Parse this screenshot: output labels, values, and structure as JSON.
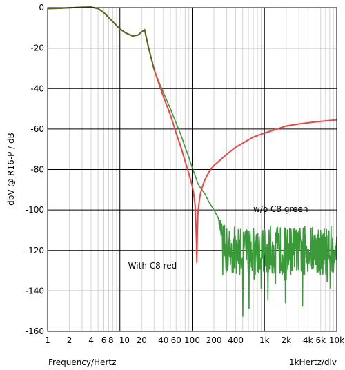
{
  "chart_data": {
    "type": "line",
    "xscale": "log",
    "xlim": [
      1,
      10000
    ],
    "ylim": [
      -160,
      0
    ],
    "xlabel": "Frequency/Hertz",
    "xlabel_right": "1kHertz/div",
    "ylabel": "dbV @ R16-P / dB",
    "grid": true,
    "y_ticks": [
      0,
      -20,
      -40,
      -60,
      -80,
      -100,
      -120,
      -140,
      -160
    ],
    "x_ticks": [
      {
        "value": 1,
        "label": "1"
      },
      {
        "value": 2,
        "label": "2"
      },
      {
        "value": 4,
        "label": "4"
      },
      {
        "value": 6,
        "label": "6"
      },
      {
        "value": 8,
        "label": "8"
      },
      {
        "value": 10,
        "label": "10"
      },
      {
        "value": 20,
        "label": "20"
      },
      {
        "value": 40,
        "label": "40"
      },
      {
        "value": 60,
        "label": "60"
      },
      {
        "value": 100,
        "label": "100"
      },
      {
        "value": 200,
        "label": "200"
      },
      {
        "value": 400,
        "label": "400"
      },
      {
        "value": 1000,
        "label": "1k"
      },
      {
        "value": 2000,
        "label": "2k"
      },
      {
        "value": 4000,
        "label": "4k"
      },
      {
        "value": 6000,
        "label": "6k"
      },
      {
        "value": 10000,
        "label": "10k"
      }
    ],
    "annotations": [
      {
        "text": "w/o C8 green",
        "x": 700,
        "y": -101
      },
      {
        "text": "With C8 red",
        "x": 13,
        "y": -129
      }
    ],
    "series": [
      {
        "color": "#ee4444",
        "x": [
          1,
          1.5,
          2,
          3,
          4,
          5,
          6,
          8,
          10,
          12,
          15,
          18,
          20,
          22,
          25,
          30,
          35,
          40,
          50,
          60,
          70,
          80,
          90,
          100,
          105,
          110,
          113,
          115,
          116,
          118,
          120,
          125,
          130,
          140,
          150,
          175,
          200,
          250,
          300,
          400,
          500,
          700,
          1000,
          1500,
          2000,
          3000,
          5000,
          7000,
          10000
        ],
        "y": [
          -0.5,
          -0.3,
          -0.1,
          0.2,
          0.3,
          -0.5,
          -2.5,
          -7,
          -10.5,
          -12.5,
          -14,
          -13.5,
          -12,
          -11,
          -20,
          -31,
          -38,
          -44,
          -53,
          -62,
          -69,
          -76,
          -82,
          -88,
          -92,
          -98,
          -108,
          -118,
          -126,
          -110,
          -102,
          -96,
          -92,
          -88,
          -85,
          -80.5,
          -78,
          -75,
          -72.5,
          -69,
          -67,
          -64,
          -62,
          -60,
          -58.5,
          -57.5,
          -56.5,
          -56,
          -55.5
        ]
      },
      {
        "color": "#3a9a3a",
        "x": [
          1,
          1.5,
          2,
          3,
          4,
          5,
          6,
          8,
          10,
          12,
          15,
          18,
          20,
          22,
          25,
          30,
          35,
          40,
          50,
          60,
          70,
          80,
          90,
          100,
          110,
          120,
          130,
          150,
          170,
          200,
          230
        ],
        "y": [
          -0.5,
          -0.3,
          -0.1,
          0.2,
          0.3,
          -0.5,
          -2.5,
          -7,
          -10.5,
          -12.5,
          -14,
          -13.5,
          -12,
          -11,
          -20,
          -31,
          -37,
          -42,
          -50,
          -57,
          -63,
          -69,
          -74,
          -79,
          -83,
          -87,
          -89,
          -92,
          -96,
          -100,
          -104
        ],
        "noise": {
          "from": 230,
          "to": 10000,
          "mean": -120,
          "spread": 12,
          "min": -162
        }
      }
    ]
  }
}
